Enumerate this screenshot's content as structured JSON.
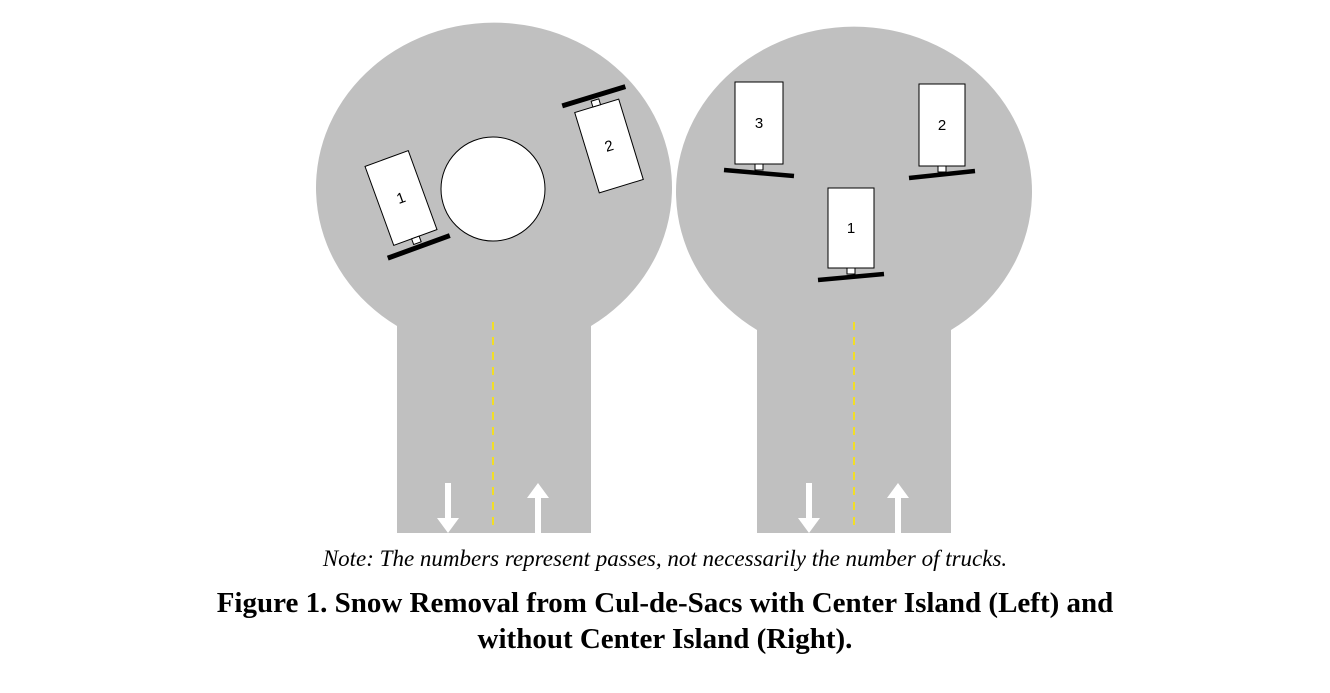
{
  "figure": {
    "colors": {
      "pavement": "#c0c0c0",
      "centerline": "#ffe600",
      "arrow": "#ffffff",
      "truck_body": "#ffffff",
      "plow_blade": "#000000",
      "island": "#ffffff"
    },
    "left_diagram": {
      "name": "With Center Island",
      "trucks": [
        {
          "label": "1"
        },
        {
          "label": "2"
        }
      ]
    },
    "right_diagram": {
      "name": "Without Center Island",
      "trucks": [
        {
          "label": "3"
        },
        {
          "label": "2"
        },
        {
          "label": "1"
        }
      ]
    }
  },
  "note": "Note: The numbers represent passes, not necessarily the number of trucks.",
  "caption": {
    "line1": "Figure 1. Snow Removal from Cul-de-Sacs with Center Island (Left) and",
    "line2": "without Center Island (Right)."
  }
}
